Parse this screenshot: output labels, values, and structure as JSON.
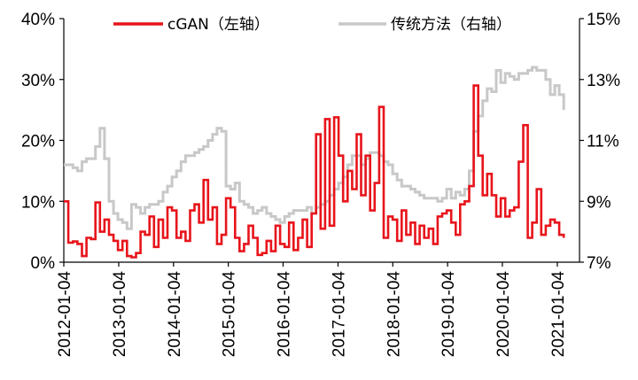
{
  "chart_data": {
    "type": "line",
    "title": "",
    "xlabel": "",
    "ylabel_left": "",
    "ylabel_right": "",
    "x_ticks": [
      "2012-01-04",
      "2013-01-04",
      "2014-01-04",
      "2015-01-04",
      "2016-01-04",
      "2017-01-04",
      "2018-01-04",
      "2019-01-04",
      "2020-01-04",
      "2021-01-04"
    ],
    "x_range": [
      "2012-01-04",
      "2021-06-01"
    ],
    "y_left_ticks": [
      "0%",
      "10%",
      "20%",
      "30%",
      "40%"
    ],
    "y_left_range": [
      0,
      40
    ],
    "y_right_ticks": [
      "7%",
      "9%",
      "11%",
      "13%",
      "15%"
    ],
    "y_right_range": [
      7,
      15
    ],
    "legend_position": "top",
    "grid": false,
    "series": [
      {
        "name": "cGAN（左轴）",
        "axis": "left",
        "color": "#e8141b",
        "points": [
          [
            "2012-01-04",
            10.0
          ],
          [
            "2012-02-03",
            3.2
          ],
          [
            "2012-03-05",
            3.4
          ],
          [
            "2012-04-04",
            3.0
          ],
          [
            "2012-05-04",
            1.0
          ],
          [
            "2012-06-03",
            4.0
          ],
          [
            "2012-07-03",
            3.8
          ],
          [
            "2012-08-02",
            9.8
          ],
          [
            "2012-09-01",
            5.0
          ],
          [
            "2012-10-01",
            7.0
          ],
          [
            "2012-10-31",
            4.5
          ],
          [
            "2012-11-30",
            3.5
          ],
          [
            "2012-12-30",
            2.0
          ],
          [
            "2013-01-29",
            3.5
          ],
          [
            "2013-02-28",
            1.0
          ],
          [
            "2013-03-30",
            0.8
          ],
          [
            "2013-04-29",
            1.5
          ],
          [
            "2013-05-29",
            5.0
          ],
          [
            "2013-06-28",
            4.5
          ],
          [
            "2013-07-28",
            7.5
          ],
          [
            "2013-08-27",
            2.5
          ],
          [
            "2013-09-26",
            7.0
          ],
          [
            "2013-10-26",
            4.0
          ],
          [
            "2013-11-25",
            9.0
          ],
          [
            "2013-12-25",
            8.5
          ],
          [
            "2014-01-24",
            4.0
          ],
          [
            "2014-02-23",
            5.0
          ],
          [
            "2014-03-25",
            3.5
          ],
          [
            "2014-04-24",
            8.5
          ],
          [
            "2014-05-24",
            9.5
          ],
          [
            "2014-06-23",
            6.5
          ],
          [
            "2014-07-23",
            13.5
          ],
          [
            "2014-08-22",
            7.0
          ],
          [
            "2014-09-21",
            9.0
          ],
          [
            "2014-10-21",
            3.0
          ],
          [
            "2014-11-20",
            4.5
          ],
          [
            "2014-12-20",
            10.5
          ],
          [
            "2015-01-19",
            9.0
          ],
          [
            "2015-02-18",
            4.0
          ],
          [
            "2015-03-20",
            1.8
          ],
          [
            "2015-04-19",
            3.0
          ],
          [
            "2015-05-19",
            6.0
          ],
          [
            "2015-06-18",
            4.0
          ],
          [
            "2015-07-18",
            1.2
          ],
          [
            "2015-08-17",
            1.5
          ],
          [
            "2015-09-16",
            3.5
          ],
          [
            "2015-10-16",
            1.8
          ],
          [
            "2015-11-15",
            6.0
          ],
          [
            "2015-12-15",
            3.0
          ],
          [
            "2016-01-14",
            2.5
          ],
          [
            "2016-02-13",
            6.5
          ],
          [
            "2016-03-14",
            2.0
          ],
          [
            "2016-04-13",
            4.0
          ],
          [
            "2016-05-13",
            7.0
          ],
          [
            "2016-06-12",
            2.5
          ],
          [
            "2016-07-12",
            8.0
          ],
          [
            "2016-08-11",
            21.0
          ],
          [
            "2016-09-10",
            5.5
          ],
          [
            "2016-10-10",
            23.5
          ],
          [
            "2016-11-09",
            6.0
          ],
          [
            "2016-12-09",
            23.8
          ],
          [
            "2017-01-08",
            17.5
          ],
          [
            "2017-02-07",
            10.0
          ],
          [
            "2017-03-09",
            15.0
          ],
          [
            "2017-04-08",
            12.0
          ],
          [
            "2017-05-08",
            21.0
          ],
          [
            "2017-06-07",
            11.0
          ],
          [
            "2017-07-07",
            17.5
          ],
          [
            "2017-08-06",
            8.5
          ],
          [
            "2017-09-05",
            13.0
          ],
          [
            "2017-10-05",
            25.5
          ],
          [
            "2017-11-04",
            4.0
          ],
          [
            "2017-12-04",
            7.5
          ],
          [
            "2018-01-03",
            7.0
          ],
          [
            "2018-02-02",
            3.5
          ],
          [
            "2018-03-04",
            8.5
          ],
          [
            "2018-04-03",
            4.5
          ],
          [
            "2018-05-03",
            6.5
          ],
          [
            "2018-06-02",
            3.0
          ],
          [
            "2018-07-02",
            6.0
          ],
          [
            "2018-08-01",
            4.0
          ],
          [
            "2018-08-31",
            5.5
          ],
          [
            "2018-09-30",
            3.0
          ],
          [
            "2018-10-30",
            7.5
          ],
          [
            "2018-11-29",
            8.0
          ],
          [
            "2018-12-29",
            8.5
          ],
          [
            "2019-01-28",
            6.5
          ],
          [
            "2019-02-27",
            4.5
          ],
          [
            "2019-03-29",
            9.5
          ],
          [
            "2019-04-28",
            10.0
          ],
          [
            "2019-05-28",
            12.5
          ],
          [
            "2019-06-27",
            29.0
          ],
          [
            "2019-07-27",
            17.5
          ],
          [
            "2019-08-26",
            11.0
          ],
          [
            "2019-09-25",
            14.5
          ],
          [
            "2019-10-25",
            11.0
          ],
          [
            "2019-11-24",
            7.5
          ],
          [
            "2019-12-24",
            10.5
          ],
          [
            "2020-01-23",
            7.5
          ],
          [
            "2020-02-22",
            8.5
          ],
          [
            "2020-03-23",
            9.0
          ],
          [
            "2020-04-22",
            16.5
          ],
          [
            "2020-05-22",
            22.5
          ],
          [
            "2020-06-21",
            4.0
          ],
          [
            "2020-07-21",
            6.5
          ],
          [
            "2020-08-20",
            12.0
          ],
          [
            "2020-09-19",
            4.5
          ],
          [
            "2020-10-19",
            6.0
          ],
          [
            "2020-11-18",
            7.0
          ],
          [
            "2020-12-18",
            6.5
          ],
          [
            "2021-01-17",
            4.5
          ],
          [
            "2021-02-16",
            4.0
          ]
        ]
      },
      {
        "name": "传统方法（右轴）",
        "axis": "right",
        "color": "#c8c8c8",
        "points": [
          [
            "2012-01-04",
            10.2
          ],
          [
            "2012-02-03",
            10.2
          ],
          [
            "2012-03-05",
            10.1
          ],
          [
            "2012-04-04",
            10.0
          ],
          [
            "2012-05-04",
            10.3
          ],
          [
            "2012-06-03",
            10.4
          ],
          [
            "2012-07-03",
            10.4
          ],
          [
            "2012-08-02",
            10.8
          ],
          [
            "2012-09-01",
            11.4
          ],
          [
            "2012-10-01",
            10.4
          ],
          [
            "2012-10-31",
            9.0
          ],
          [
            "2012-11-30",
            8.6
          ],
          [
            "2012-12-30",
            8.4
          ],
          [
            "2013-01-29",
            8.3
          ],
          [
            "2013-02-28",
            8.1
          ],
          [
            "2013-03-30",
            8.9
          ],
          [
            "2013-04-29",
            8.8
          ],
          [
            "2013-05-29",
            8.6
          ],
          [
            "2013-06-28",
            8.8
          ],
          [
            "2013-07-28",
            8.9
          ],
          [
            "2013-08-27",
            8.9
          ],
          [
            "2013-09-26",
            9.0
          ],
          [
            "2013-10-26",
            9.3
          ],
          [
            "2013-11-25",
            9.5
          ],
          [
            "2013-12-25",
            9.8
          ],
          [
            "2014-01-24",
            10.0
          ],
          [
            "2014-02-23",
            10.3
          ],
          [
            "2014-03-25",
            10.5
          ],
          [
            "2014-04-24",
            10.5
          ],
          [
            "2014-05-24",
            10.6
          ],
          [
            "2014-06-23",
            10.7
          ],
          [
            "2014-07-23",
            10.8
          ],
          [
            "2014-08-22",
            11.0
          ],
          [
            "2014-09-21",
            11.2
          ],
          [
            "2014-10-21",
            11.4
          ],
          [
            "2014-11-20",
            11.3
          ],
          [
            "2014-12-20",
            9.5
          ],
          [
            "2015-01-19",
            9.4
          ],
          [
            "2015-02-18",
            9.6
          ],
          [
            "2015-03-20",
            9.0
          ],
          [
            "2015-04-19",
            8.9
          ],
          [
            "2015-05-19",
            8.8
          ],
          [
            "2015-06-18",
            8.6
          ],
          [
            "2015-07-18",
            8.7
          ],
          [
            "2015-08-17",
            8.8
          ],
          [
            "2015-09-16",
            8.6
          ],
          [
            "2015-10-16",
            8.5
          ],
          [
            "2015-11-15",
            8.4
          ],
          [
            "2015-12-15",
            8.3
          ],
          [
            "2016-01-14",
            8.5
          ],
          [
            "2016-02-13",
            8.6
          ],
          [
            "2016-03-14",
            8.7
          ],
          [
            "2016-04-13",
            8.7
          ],
          [
            "2016-05-13",
            8.7
          ],
          [
            "2016-06-12",
            8.8
          ],
          [
            "2016-07-12",
            8.6
          ],
          [
            "2016-08-11",
            8.8
          ],
          [
            "2016-09-10",
            8.9
          ],
          [
            "2016-10-10",
            9.0
          ],
          [
            "2016-11-09",
            9.2
          ],
          [
            "2016-12-09",
            9.4
          ],
          [
            "2017-01-08",
            9.6
          ],
          [
            "2017-02-07",
            9.8
          ],
          [
            "2017-03-09",
            10.2
          ],
          [
            "2017-04-08",
            10.5
          ],
          [
            "2017-05-08",
            10.5
          ],
          [
            "2017-06-07",
            10.2
          ],
          [
            "2017-07-07",
            10.4
          ],
          [
            "2017-08-06",
            10.6
          ],
          [
            "2017-09-05",
            10.6
          ],
          [
            "2017-10-05",
            10.5
          ],
          [
            "2017-11-04",
            10.3
          ],
          [
            "2017-12-04",
            10.2
          ],
          [
            "2018-01-03",
            9.9
          ],
          [
            "2018-02-02",
            9.7
          ],
          [
            "2018-03-04",
            9.5
          ],
          [
            "2018-04-03",
            9.5
          ],
          [
            "2018-05-03",
            9.4
          ],
          [
            "2018-06-02",
            9.3
          ],
          [
            "2018-07-02",
            9.2
          ],
          [
            "2018-08-01",
            9.1
          ],
          [
            "2018-08-31",
            9.1
          ],
          [
            "2018-09-30",
            9.1
          ],
          [
            "2018-10-30",
            9.0
          ],
          [
            "2018-11-29",
            9.1
          ],
          [
            "2018-12-29",
            9.4
          ],
          [
            "2019-01-28",
            9.1
          ],
          [
            "2019-02-27",
            9.3
          ],
          [
            "2019-03-29",
            9.2
          ],
          [
            "2019-04-28",
            9.4
          ],
          [
            "2019-05-28",
            10.0
          ],
          [
            "2019-06-27",
            11.3
          ],
          [
            "2019-07-27",
            11.8
          ],
          [
            "2019-08-26",
            12.3
          ],
          [
            "2019-09-25",
            12.7
          ],
          [
            "2019-10-25",
            12.6
          ],
          [
            "2019-11-24",
            13.3
          ],
          [
            "2019-12-24",
            12.9
          ],
          [
            "2020-01-23",
            13.2
          ],
          [
            "2020-02-22",
            13.1
          ],
          [
            "2020-03-23",
            13.0
          ],
          [
            "2020-04-22",
            13.2
          ],
          [
            "2020-05-22",
            13.2
          ],
          [
            "2020-06-21",
            13.3
          ],
          [
            "2020-07-21",
            13.4
          ],
          [
            "2020-08-20",
            13.3
          ],
          [
            "2020-09-19",
            13.3
          ],
          [
            "2020-10-19",
            13.0
          ],
          [
            "2020-11-18",
            12.5
          ],
          [
            "2020-12-18",
            12.8
          ],
          [
            "2021-01-17",
            12.5
          ],
          [
            "2021-02-16",
            12.0
          ]
        ]
      }
    ]
  }
}
